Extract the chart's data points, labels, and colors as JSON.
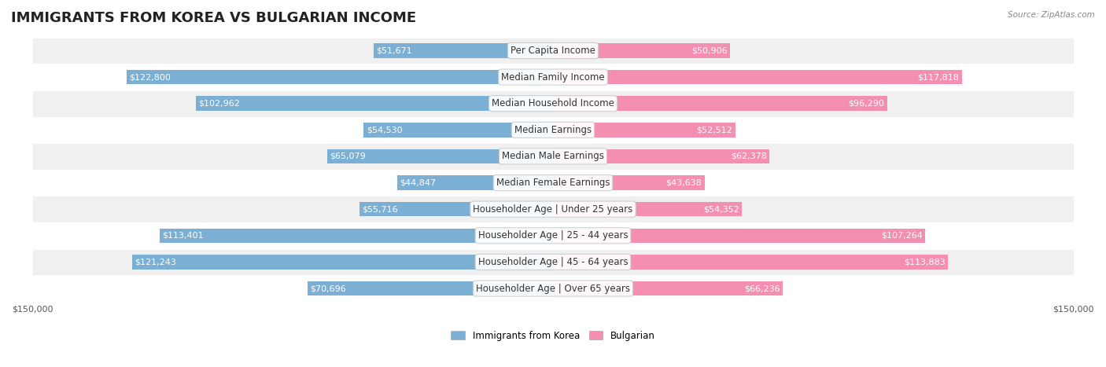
{
  "title": "IMMIGRANTS FROM KOREA VS BULGARIAN INCOME",
  "source": "Source: ZipAtlas.com",
  "categories": [
    "Per Capita Income",
    "Median Family Income",
    "Median Household Income",
    "Median Earnings",
    "Median Male Earnings",
    "Median Female Earnings",
    "Householder Age | Under 25 years",
    "Householder Age | 25 - 44 years",
    "Householder Age | 45 - 64 years",
    "Householder Age | Over 65 years"
  ],
  "korea_values": [
    51671,
    122800,
    102962,
    54530,
    65079,
    44847,
    55716,
    113401,
    121243,
    70696
  ],
  "bulgarian_values": [
    50906,
    117818,
    96290,
    52512,
    62378,
    43638,
    54352,
    107264,
    113883,
    66236
  ],
  "korea_color": "#7bafd4",
  "bulgarian_color": "#f48fb1",
  "korea_label": "Immigrants from Korea",
  "bulgarian_label": "Bulgarian",
  "max_value": 150000,
  "bar_height": 0.55,
  "background_color": "#ffffff",
  "row_bg_color": "#f0f0f0",
  "row_bg_color_alt": "#ffffff",
  "title_fontsize": 13,
  "label_fontsize": 8.5,
  "value_fontsize": 8,
  "axis_fontsize": 8
}
